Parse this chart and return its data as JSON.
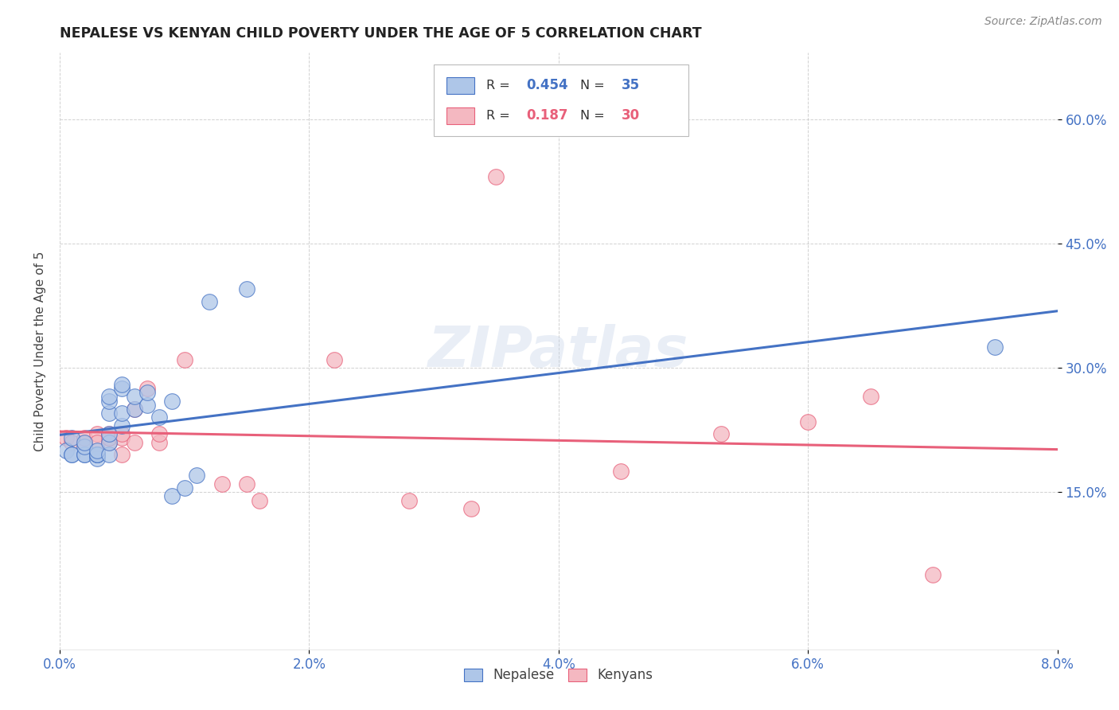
{
  "title": "NEPALESE VS KENYAN CHILD POVERTY UNDER THE AGE OF 5 CORRELATION CHART",
  "source": "Source: ZipAtlas.com",
  "ylabel": "Child Poverty Under the Age of 5",
  "ytick_labels": [
    "15.0%",
    "30.0%",
    "45.0%",
    "60.0%"
  ],
  "ytick_values": [
    0.15,
    0.3,
    0.45,
    0.6
  ],
  "xlim": [
    0.0,
    0.08
  ],
  "ylim": [
    -0.04,
    0.68
  ],
  "nepalese_R": 0.454,
  "nepalese_N": 35,
  "kenyan_R": 0.187,
  "kenyan_N": 30,
  "nepalese_color": "#aec6e8",
  "kenyan_color": "#f4b8c1",
  "nepalese_line_color": "#4472c4",
  "kenyan_line_color": "#e8607a",
  "nepalese_x": [
    0.0005,
    0.001,
    0.001,
    0.001,
    0.002,
    0.002,
    0.002,
    0.002,
    0.003,
    0.003,
    0.003,
    0.003,
    0.003,
    0.004,
    0.004,
    0.004,
    0.004,
    0.004,
    0.004,
    0.005,
    0.005,
    0.005,
    0.005,
    0.006,
    0.006,
    0.007,
    0.007,
    0.008,
    0.009,
    0.009,
    0.01,
    0.011,
    0.012,
    0.015,
    0.075
  ],
  "nepalese_y": [
    0.2,
    0.195,
    0.195,
    0.215,
    0.195,
    0.195,
    0.205,
    0.21,
    0.19,
    0.195,
    0.195,
    0.195,
    0.2,
    0.195,
    0.21,
    0.22,
    0.245,
    0.26,
    0.265,
    0.23,
    0.245,
    0.275,
    0.28,
    0.25,
    0.265,
    0.255,
    0.27,
    0.24,
    0.26,
    0.145,
    0.155,
    0.17,
    0.38,
    0.395,
    0.325
  ],
  "kenyan_x": [
    0.0005,
    0.001,
    0.002,
    0.002,
    0.003,
    0.003,
    0.004,
    0.004,
    0.004,
    0.005,
    0.005,
    0.005,
    0.006,
    0.006,
    0.007,
    0.008,
    0.008,
    0.01,
    0.013,
    0.015,
    0.016,
    0.022,
    0.028,
    0.033,
    0.035,
    0.045,
    0.053,
    0.06,
    0.065,
    0.07
  ],
  "kenyan_y": [
    0.215,
    0.21,
    0.21,
    0.215,
    0.22,
    0.21,
    0.21,
    0.22,
    0.215,
    0.215,
    0.22,
    0.195,
    0.25,
    0.21,
    0.275,
    0.21,
    0.22,
    0.31,
    0.16,
    0.16,
    0.14,
    0.31,
    0.14,
    0.13,
    0.53,
    0.175,
    0.22,
    0.235,
    0.265,
    0.05
  ],
  "watermark_text": "ZIPatlas",
  "background_color": "#ffffff",
  "grid_color": "#cccccc"
}
